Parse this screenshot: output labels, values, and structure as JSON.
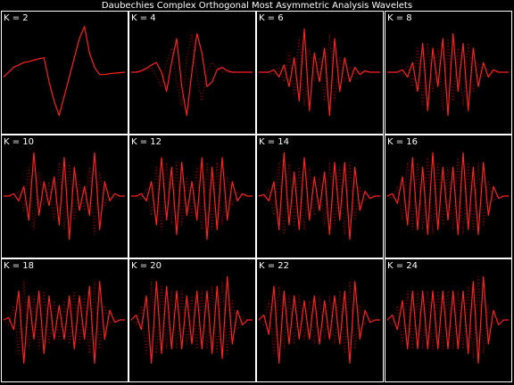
{
  "title": "Daubechies Complex Orthogonal Most Asymmetric Analysis Wavelets",
  "chart_data": [
    {
      "type": "line",
      "title": "K = 2",
      "ylim": [
        -10,
        10
      ],
      "series": [
        {
          "color": "#ff2020",
          "style": "solid",
          "values": [
            -1,
            0,
            1,
            1.5,
            2,
            2.2,
            2.5,
            2.8,
            3,
            -2,
            -6,
            -9,
            -5,
            -1,
            3,
            7,
            9.5,
            4,
            1,
            -0.5,
            -0.5,
            -0.3,
            -0.2,
            -0.1,
            0
          ]
        }
      ]
    },
    {
      "type": "line",
      "title": "K = 4",
      "ylim": [
        -10,
        10
      ],
      "series": [
        {
          "color": "#ff2020",
          "style": "solid",
          "values": [
            0,
            0,
            0.3,
            0.8,
            1.5,
            2,
            0,
            -4,
            2,
            7,
            -3,
            -9,
            0,
            8,
            4,
            -3,
            -2,
            0.5,
            1,
            0.3,
            0,
            0,
            0,
            0,
            0
          ]
        },
        {
          "color": "#c00000",
          "style": "dotted",
          "values": [
            0,
            0,
            0,
            0.5,
            1,
            -1,
            -3,
            2,
            5,
            -2,
            -7,
            3,
            8,
            -1,
            -6,
            0,
            2,
            1,
            0,
            0,
            0,
            0,
            0,
            0,
            0
          ]
        }
      ]
    },
    {
      "type": "line",
      "title": "K = 6",
      "ylim": [
        -10,
        10
      ],
      "series": [
        {
          "color": "#ff2020",
          "style": "solid",
          "values": [
            0,
            0,
            0,
            0.5,
            -1,
            1.5,
            -3,
            3,
            -6,
            9,
            -8,
            4,
            -2,
            5,
            -9,
            7,
            -4,
            3,
            -2,
            1,
            -0.5,
            0.3,
            0,
            0,
            0
          ]
        },
        {
          "color": "#c00000",
          "style": "dotted",
          "values": [
            0,
            0,
            0,
            -0.5,
            1,
            -2,
            4,
            -5,
            7,
            -7,
            5,
            -2,
            3,
            -6,
            8,
            -6,
            3,
            -2,
            1,
            -0.5,
            0.2,
            0,
            0,
            0,
            0
          ]
        }
      ]
    },
    {
      "type": "line",
      "title": "K = 8",
      "ylim": [
        -10,
        10
      ],
      "series": [
        {
          "color": "#ff2020",
          "style": "solid",
          "values": [
            0,
            0,
            0,
            0.5,
            -1,
            2,
            -4,
            6,
            -8,
            5,
            -3,
            7,
            -9,
            8,
            -4,
            6,
            -8,
            5,
            -3,
            2,
            -1,
            0.5,
            0,
            0,
            0
          ]
        },
        {
          "color": "#c00000",
          "style": "dotted",
          "values": [
            0,
            0,
            0,
            -0.5,
            1.5,
            -3,
            5,
            -7,
            6,
            -4,
            5,
            -8,
            7,
            -6,
            5,
            -7,
            6,
            -4,
            2,
            -1,
            0.5,
            0,
            0,
            0,
            0
          ]
        }
      ]
    },
    {
      "type": "line",
      "title": "K = 10",
      "ylim": [
        -10,
        10
      ],
      "series": [
        {
          "color": "#ff2020",
          "style": "solid",
          "values": [
            0,
            0,
            0.5,
            -1,
            2,
            -5,
            9,
            -4,
            3,
            -2,
            4,
            -6,
            8,
            -9,
            6,
            -3,
            2,
            -4,
            9,
            -7,
            3,
            -1,
            0.5,
            0,
            0
          ]
        },
        {
          "color": "#c00000",
          "style": "dotted",
          "values": [
            0,
            0,
            -0.3,
            1,
            -3,
            6,
            -7,
            5,
            -2,
            3,
            -5,
            7,
            -7,
            7,
            -5,
            3,
            -3,
            6,
            -8,
            5,
            -2,
            1,
            -0.3,
            0,
            0
          ]
        }
      ]
    },
    {
      "type": "line",
      "title": "K = 12",
      "ylim": [
        -10,
        10
      ],
      "series": [
        {
          "color": "#ff2020",
          "style": "solid",
          "values": [
            0,
            0,
            0.5,
            -1,
            3,
            -6,
            8,
            -5,
            6,
            -8,
            7,
            -4,
            3,
            -5,
            8,
            -9,
            6,
            -7,
            8,
            -5,
            3,
            -1,
            0.5,
            0,
            0
          ]
        },
        {
          "color": "#c00000",
          "style": "dotted",
          "values": [
            0,
            0,
            -0.5,
            1.5,
            -4,
            6,
            -7,
            7,
            -6,
            7,
            -6,
            4,
            -4,
            6,
            -7,
            7,
            -7,
            7,
            -6,
            4,
            -2,
            1,
            0,
            0,
            0
          ]
        }
      ]
    },
    {
      "type": "line",
      "title": "K = 14",
      "ylim": [
        -10,
        10
      ],
      "series": [
        {
          "color": "#ff2020",
          "style": "solid",
          "values": [
            0,
            0.3,
            -1,
            3,
            -7,
            9,
            -6,
            5,
            -7,
            8,
            -5,
            4,
            -3,
            5,
            -8,
            7,
            -5,
            7,
            -9,
            6,
            -3,
            1,
            -0.5,
            0,
            0
          ]
        },
        {
          "color": "#c00000",
          "style": "dotted",
          "values": [
            0,
            -0.3,
            1.5,
            -4,
            7,
            -8,
            7,
            -6,
            6,
            -7,
            6,
            -4,
            4,
            -6,
            7,
            -6,
            6,
            -8,
            7,
            -5,
            2,
            -1,
            0.3,
            0,
            0
          ]
        }
      ]
    },
    {
      "type": "line",
      "title": "K = 16",
      "ylim": [
        -10,
        10
      ],
      "series": [
        {
          "color": "#ff2020",
          "style": "solid",
          "values": [
            0,
            0.5,
            -1.5,
            4,
            -6,
            8,
            -7,
            6,
            -8,
            9,
            -7,
            6,
            -5,
            6,
            -8,
            9,
            -7,
            6,
            -8,
            7,
            -4,
            2,
            -0.5,
            0,
            0
          ]
        },
        {
          "color": "#c00000",
          "style": "dotted",
          "values": [
            0,
            -0.5,
            2,
            -5,
            7,
            -7,
            7,
            -7,
            8,
            -8,
            7,
            -6,
            6,
            -7,
            8,
            -8,
            7,
            -7,
            7,
            -6,
            3,
            -1,
            0.3,
            0,
            0
          ]
        }
      ]
    },
    {
      "type": "line",
      "title": "K = 18",
      "ylim": [
        -10,
        10
      ],
      "series": [
        {
          "color": "#ff2020",
          "style": "solid",
          "values": [
            0,
            0.5,
            -2,
            6,
            -9,
            5,
            -4,
            6,
            -7,
            5,
            -4,
            3,
            -4,
            5,
            -6,
            5,
            -4,
            7,
            -9,
            8,
            -4,
            2,
            -0.5,
            0,
            0
          ]
        },
        {
          "color": "#c00000",
          "style": "dotted",
          "values": [
            0,
            -1,
            3,
            -7,
            8,
            -6,
            5,
            -6,
            6,
            -5,
            4,
            -4,
            4,
            -5,
            6,
            -5,
            5,
            -7,
            8,
            -6,
            3,
            -1,
            0.3,
            0,
            0
          ]
        }
      ]
    },
    {
      "type": "line",
      "title": "K = 20",
      "ylim": [
        -10,
        10
      ],
      "series": [
        {
          "color": "#ff2020",
          "style": "solid",
          "values": [
            0,
            1,
            -2,
            5,
            -9,
            8,
            -7,
            7,
            -6,
            6,
            -6,
            5,
            -5,
            6,
            -6,
            6,
            -7,
            7,
            -8,
            9,
            -5,
            2,
            -1,
            0,
            0
          ]
        },
        {
          "color": "#c00000",
          "style": "dotted",
          "values": [
            0,
            -1,
            3,
            -7,
            8,
            -7,
            7,
            -6,
            6,
            -6,
            6,
            -5,
            5,
            -6,
            6,
            -6,
            7,
            -7,
            8,
            -7,
            4,
            -2,
            0.5,
            0,
            0
          ]
        }
      ]
    },
    {
      "type": "line",
      "title": "K = 22",
      "ylim": [
        -10,
        10
      ],
      "series": [
        {
          "color": "#ff2020",
          "style": "solid",
          "values": [
            0,
            1,
            -3,
            7,
            -9,
            6,
            -5,
            5,
            -4,
            4,
            -4,
            5,
            -5,
            4,
            -4,
            5,
            -5,
            6,
            -9,
            8,
            -4,
            2,
            -0.5,
            0,
            0
          ]
        },
        {
          "color": "#c00000",
          "style": "dotted",
          "values": [
            0,
            -1,
            4,
            -7,
            7,
            -6,
            5,
            -5,
            5,
            -4,
            4,
            -5,
            5,
            -4,
            5,
            -5,
            6,
            -7,
            8,
            -6,
            3,
            -1,
            0.3,
            0,
            0
          ]
        }
      ]
    },
    {
      "type": "line",
      "title": "K = 24",
      "ylim": [
        -10,
        10
      ],
      "series": [
        {
          "color": "#ff2020",
          "style": "solid",
          "values": [
            0,
            1,
            -2,
            4,
            -6,
            6,
            -6,
            6,
            -6,
            6,
            -6,
            6,
            -6,
            6,
            -6,
            6,
            -7,
            8,
            -9,
            9,
            -5,
            2,
            -1,
            0,
            0
          ]
        },
        {
          "color": "#c00000",
          "style": "dotted",
          "values": [
            0,
            -1,
            3,
            -5,
            6,
            -6,
            6,
            -6,
            6,
            -6,
            6,
            -6,
            6,
            -6,
            6,
            -6,
            7,
            -8,
            9,
            -7,
            3,
            -1,
            0.3,
            0,
            0
          ]
        }
      ]
    }
  ]
}
